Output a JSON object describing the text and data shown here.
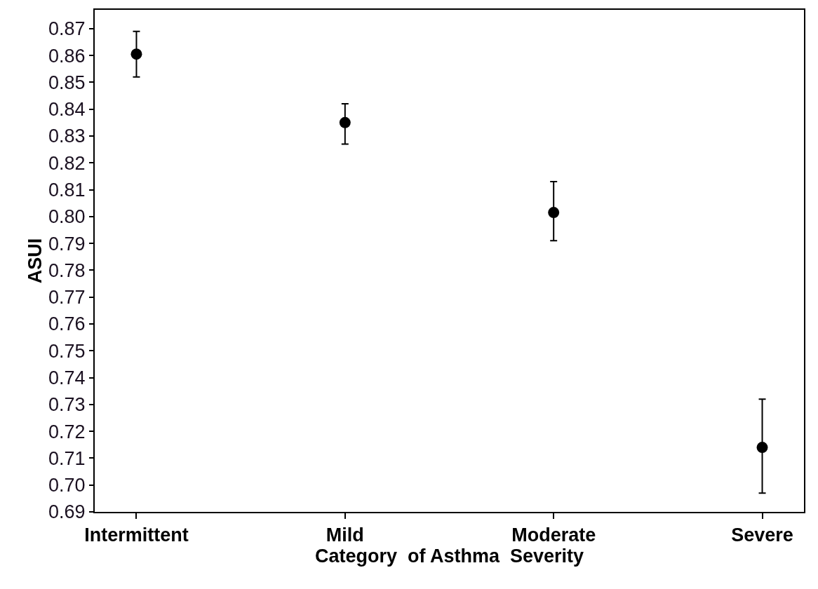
{
  "chart_data": {
    "type": "scatter",
    "xlabel": "Category  of Asthma  Severity",
    "ylabel": "ASUI",
    "categories": [
      "Intermittent",
      "Mild",
      "Moderate",
      "Severe"
    ],
    "series": [
      {
        "color": "#000000",
        "values": [
          0.8605,
          0.835,
          0.8015,
          0.714
        ],
        "errors": [
          [
            0.852,
            0.869
          ],
          [
            0.827,
            0.842
          ],
          [
            0.791,
            0.813
          ],
          [
            0.697,
            0.732
          ]
        ]
      }
    ],
    "ylim": [
      0.69,
      0.877
    ],
    "yticks": [
      0.69,
      {
        "value": 0.7,
        "label": "0.70"
      },
      0.71,
      0.72,
      0.73,
      0.74,
      0.75,
      0.76,
      0.77,
      0.78,
      0.79,
      {
        "value": 0.8,
        "label": "0.80"
      },
      0.81,
      0.82,
      0.83,
      0.84,
      0.85,
      0.86,
      0.87
    ],
    "marker": "circle"
  }
}
